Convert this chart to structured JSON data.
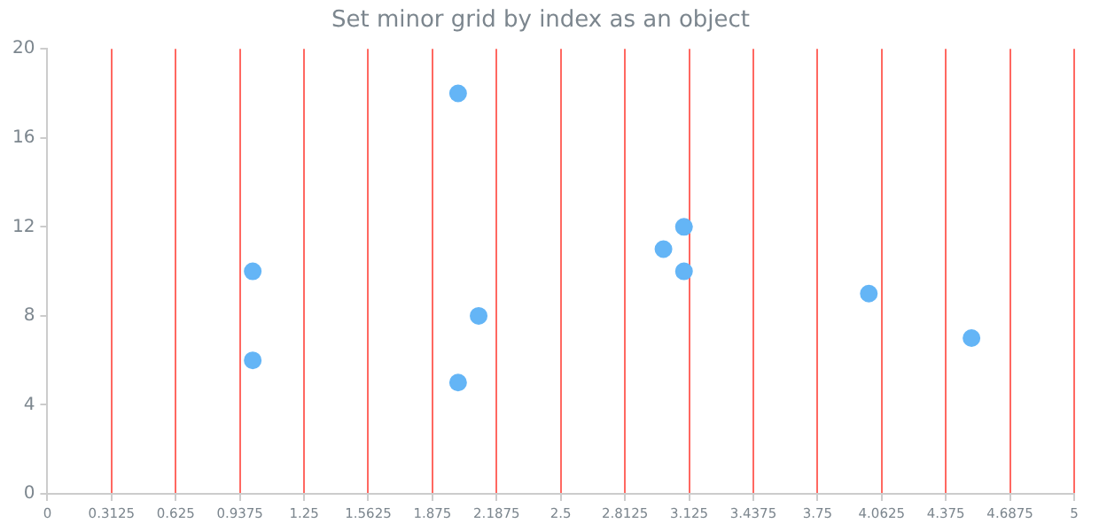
{
  "chart_data": {
    "type": "scatter",
    "title": "Set minor grid by index as an object",
    "x": [
      1,
      1,
      2,
      2.1,
      2,
      3,
      3.1,
      3.1,
      4,
      4.5
    ],
    "series": [
      {
        "color": "#64b5f6",
        "values": [
          10,
          6,
          18,
          8,
          5,
          11,
          12,
          10,
          9,
          7
        ]
      }
    ],
    "xlim": [
      0,
      5
    ],
    "xticks": [
      0,
      0.3125,
      0.625,
      0.9375,
      1.25,
      1.5625,
      1.875,
      2.1875,
      2.5,
      2.8125,
      3.125,
      3.4375,
      3.75,
      4.0625,
      4.375,
      4.6875,
      5
    ],
    "ylim": [
      0,
      20
    ],
    "yticks": [
      0,
      4,
      8,
      12,
      16,
      20
    ],
    "grid": "x",
    "legend": false,
    "marker": "circle"
  }
}
